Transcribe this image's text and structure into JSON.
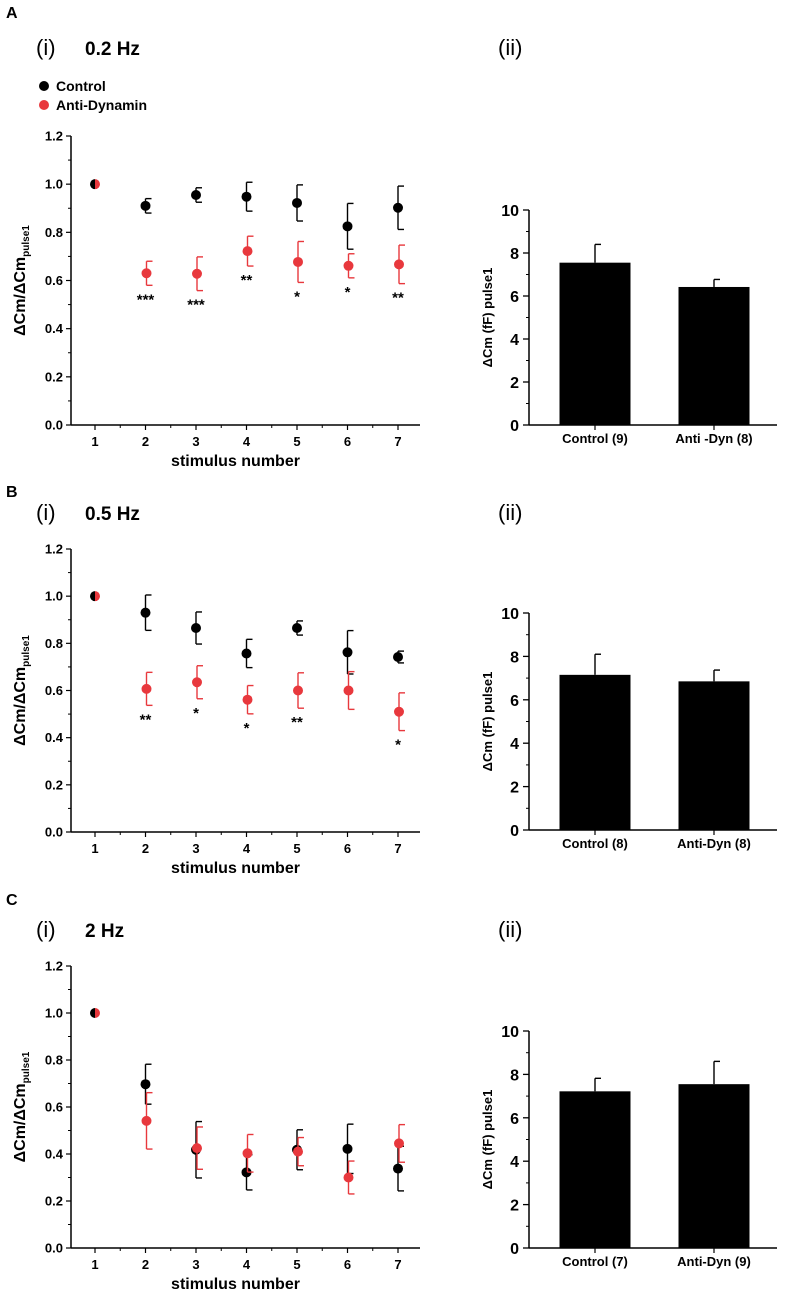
{
  "panels": [
    {
      "letter": "A",
      "scatter": {
        "roman": "(i)",
        "frequency": "0.2 Hz",
        "ylabel_main": "ΔCm/ΔCm",
        "ylabel_sub": "pulse1",
        "xlabel": "stimulus number",
        "ylim": [
          0.0,
          1.2
        ],
        "yticks": [
          "0.0",
          "0.2",
          "0.4",
          "0.6",
          "0.8",
          "1.0",
          "1.2"
        ],
        "x": [
          1,
          2,
          3,
          4,
          5,
          6,
          7
        ],
        "series": [
          {
            "name": "Control",
            "color": "#000000",
            "values": [
              1.0,
              0.91,
              0.955,
              0.948,
              0.922,
              0.825,
              0.902
            ],
            "errors": [
              0,
              0.03,
              0.03,
              0.06,
              0.075,
              0.095,
              0.09
            ]
          },
          {
            "name": "Anti-Dynamin",
            "color": "#e8383d",
            "values": [
              1.0,
              0.63,
              0.628,
              0.722,
              0.677,
              0.661,
              0.667
            ],
            "errors": [
              0,
              0.05,
              0.07,
              0.062,
              0.085,
              0.05,
              0.08
            ]
          }
        ],
        "significance": [
          "",
          "***",
          "***",
          "**",
          "*",
          "*",
          "**"
        ]
      },
      "bar": {
        "roman": "(ii)",
        "ylabel": "ΔCm (fF) pulse1",
        "ylim": [
          0,
          10
        ],
        "yticks": [
          "0",
          "2",
          "4",
          "6",
          "8",
          "10"
        ],
        "categories": [
          "Control (9)",
          "Anti -Dyn (8)"
        ],
        "values": [
          7.55,
          6.42
        ],
        "errors": [
          0.85,
          0.35
        ]
      }
    },
    {
      "letter": "B",
      "scatter": {
        "roman": "(i)",
        "frequency": "0.5 Hz",
        "ylabel_main": "ΔCm/ΔCm",
        "ylabel_sub": "pulse1",
        "xlabel": "stimulus number",
        "ylim": [
          0.0,
          1.2
        ],
        "yticks": [
          "0.0",
          "0.2",
          "0.4",
          "0.6",
          "0.8",
          "1.0",
          "1.2"
        ],
        "x": [
          1,
          2,
          3,
          4,
          5,
          6,
          7
        ],
        "series": [
          {
            "name": "Control",
            "color": "#000000",
            "values": [
              1.0,
              0.93,
              0.865,
              0.757,
              0.865,
              0.762,
              0.742
            ],
            "errors": [
              0,
              0.075,
              0.068,
              0.06,
              0.03,
              0.092,
              0.025
            ]
          },
          {
            "name": "Anti-Dynamin",
            "color": "#e8383d",
            "values": [
              1.0,
              0.607,
              0.635,
              0.561,
              0.6,
              0.6,
              0.51
            ],
            "errors": [
              0,
              0.07,
              0.07,
              0.06,
              0.075,
              0.08,
              0.08
            ]
          }
        ],
        "significance": [
          "",
          "**",
          "*",
          "*",
          "**",
          "",
          "*"
        ]
      },
      "bar": {
        "roman": "(ii)",
        "ylabel": "ΔCm (fF) pulse1",
        "ylim": [
          0,
          10
        ],
        "yticks": [
          "0",
          "2",
          "4",
          "6",
          "8",
          "10"
        ],
        "categories": [
          "Control (8)",
          "Anti-Dyn (8)"
        ],
        "values": [
          7.15,
          6.85
        ],
        "errors": [
          0.95,
          0.52
        ]
      }
    },
    {
      "letter": "C",
      "scatter": {
        "roman": "(i)",
        "frequency": "2 Hz",
        "ylabel_main": "ΔCm/ΔCm",
        "ylabel_sub": "pulse1",
        "xlabel": "stimulus number",
        "ylim": [
          0.0,
          1.2
        ],
        "yticks": [
          "0.0",
          "0.2",
          "0.4",
          "0.6",
          "0.8",
          "1.0",
          "1.2"
        ],
        "x": [
          1,
          2,
          3,
          4,
          5,
          6,
          7
        ],
        "series": [
          {
            "name": "Control",
            "color": "#000000",
            "values": [
              1.0,
              0.697,
              0.418,
              0.322,
              0.418,
              0.422,
              0.338
            ],
            "errors": [
              0,
              0.085,
              0.12,
              0.075,
              0.085,
              0.105,
              0.095
            ]
          },
          {
            "name": "Anti-Dynamin",
            "color": "#e8383d",
            "values": [
              1.0,
              0.541,
              0.425,
              0.403,
              0.41,
              0.3,
              0.445
            ],
            "errors": [
              0,
              0.12,
              0.09,
              0.08,
              0.06,
              0.07,
              0.08
            ]
          }
        ],
        "significance": [
          "",
          "",
          "",
          "",
          "",
          "",
          ""
        ]
      },
      "bar": {
        "roman": "(ii)",
        "ylabel": "ΔCm (fF) pulse1",
        "ylim": [
          0,
          10
        ],
        "yticks": [
          "0",
          "2",
          "4",
          "6",
          "8",
          "10"
        ],
        "categories": [
          "Control (7)",
          "Anti-Dyn (9)"
        ],
        "values": [
          7.22,
          7.55
        ],
        "errors": [
          0.6,
          1.05
        ]
      }
    }
  ],
  "legend": {
    "items": [
      {
        "label": "Control",
        "color": "#000000"
      },
      {
        "label": "Anti-Dynamin",
        "color": "#e8383d"
      }
    ]
  },
  "chart_data": [
    {
      "type": "scatter",
      "title": "A(i) 0.2 Hz",
      "xlabel": "stimulus number",
      "ylabel": "ΔCm/ΔCm pulse1",
      "x": [
        1,
        2,
        3,
        4,
        5,
        6,
        7
      ],
      "ylim": [
        0,
        1.2
      ],
      "series": [
        {
          "name": "Control",
          "values": [
            1.0,
            0.91,
            0.955,
            0.948,
            0.922,
            0.825,
            0.902
          ]
        },
        {
          "name": "Anti-Dynamin",
          "values": [
            1.0,
            0.63,
            0.628,
            0.722,
            0.677,
            0.661,
            0.667
          ]
        }
      ]
    },
    {
      "type": "bar",
      "title": "A(ii)",
      "ylabel": "ΔCm (fF) pulse1",
      "categories": [
        "Control (9)",
        "Anti -Dyn (8)"
      ],
      "values": [
        7.55,
        6.42
      ],
      "ylim": [
        0,
        10
      ]
    },
    {
      "type": "scatter",
      "title": "B(i) 0.5 Hz",
      "xlabel": "stimulus number",
      "ylabel": "ΔCm/ΔCm pulse1",
      "x": [
        1,
        2,
        3,
        4,
        5,
        6,
        7
      ],
      "ylim": [
        0,
        1.2
      ],
      "series": [
        {
          "name": "Control",
          "values": [
            1.0,
            0.93,
            0.865,
            0.757,
            0.865,
            0.762,
            0.742
          ]
        },
        {
          "name": "Anti-Dynamin",
          "values": [
            1.0,
            0.607,
            0.635,
            0.561,
            0.6,
            0.6,
            0.51
          ]
        }
      ]
    },
    {
      "type": "bar",
      "title": "B(ii)",
      "ylabel": "ΔCm (fF) pulse1",
      "categories": [
        "Control (8)",
        "Anti-Dyn (8)"
      ],
      "values": [
        7.15,
        6.85
      ],
      "ylim": [
        0,
        10
      ]
    },
    {
      "type": "scatter",
      "title": "C(i) 2 Hz",
      "xlabel": "stimulus number",
      "ylabel": "ΔCm/ΔCm pulse1",
      "x": [
        1,
        2,
        3,
        4,
        5,
        6,
        7
      ],
      "ylim": [
        0,
        1.2
      ],
      "series": [
        {
          "name": "Control",
          "values": [
            1.0,
            0.697,
            0.418,
            0.322,
            0.418,
            0.422,
            0.338
          ]
        },
        {
          "name": "Anti-Dynamin",
          "values": [
            1.0,
            0.541,
            0.425,
            0.403,
            0.41,
            0.3,
            0.445
          ]
        }
      ]
    },
    {
      "type": "bar",
      "title": "C(ii)",
      "ylabel": "ΔCm (fF) pulse1",
      "categories": [
        "Control (7)",
        "Anti-Dyn (9)"
      ],
      "values": [
        7.22,
        7.55
      ],
      "ylim": [
        0,
        10
      ]
    }
  ]
}
